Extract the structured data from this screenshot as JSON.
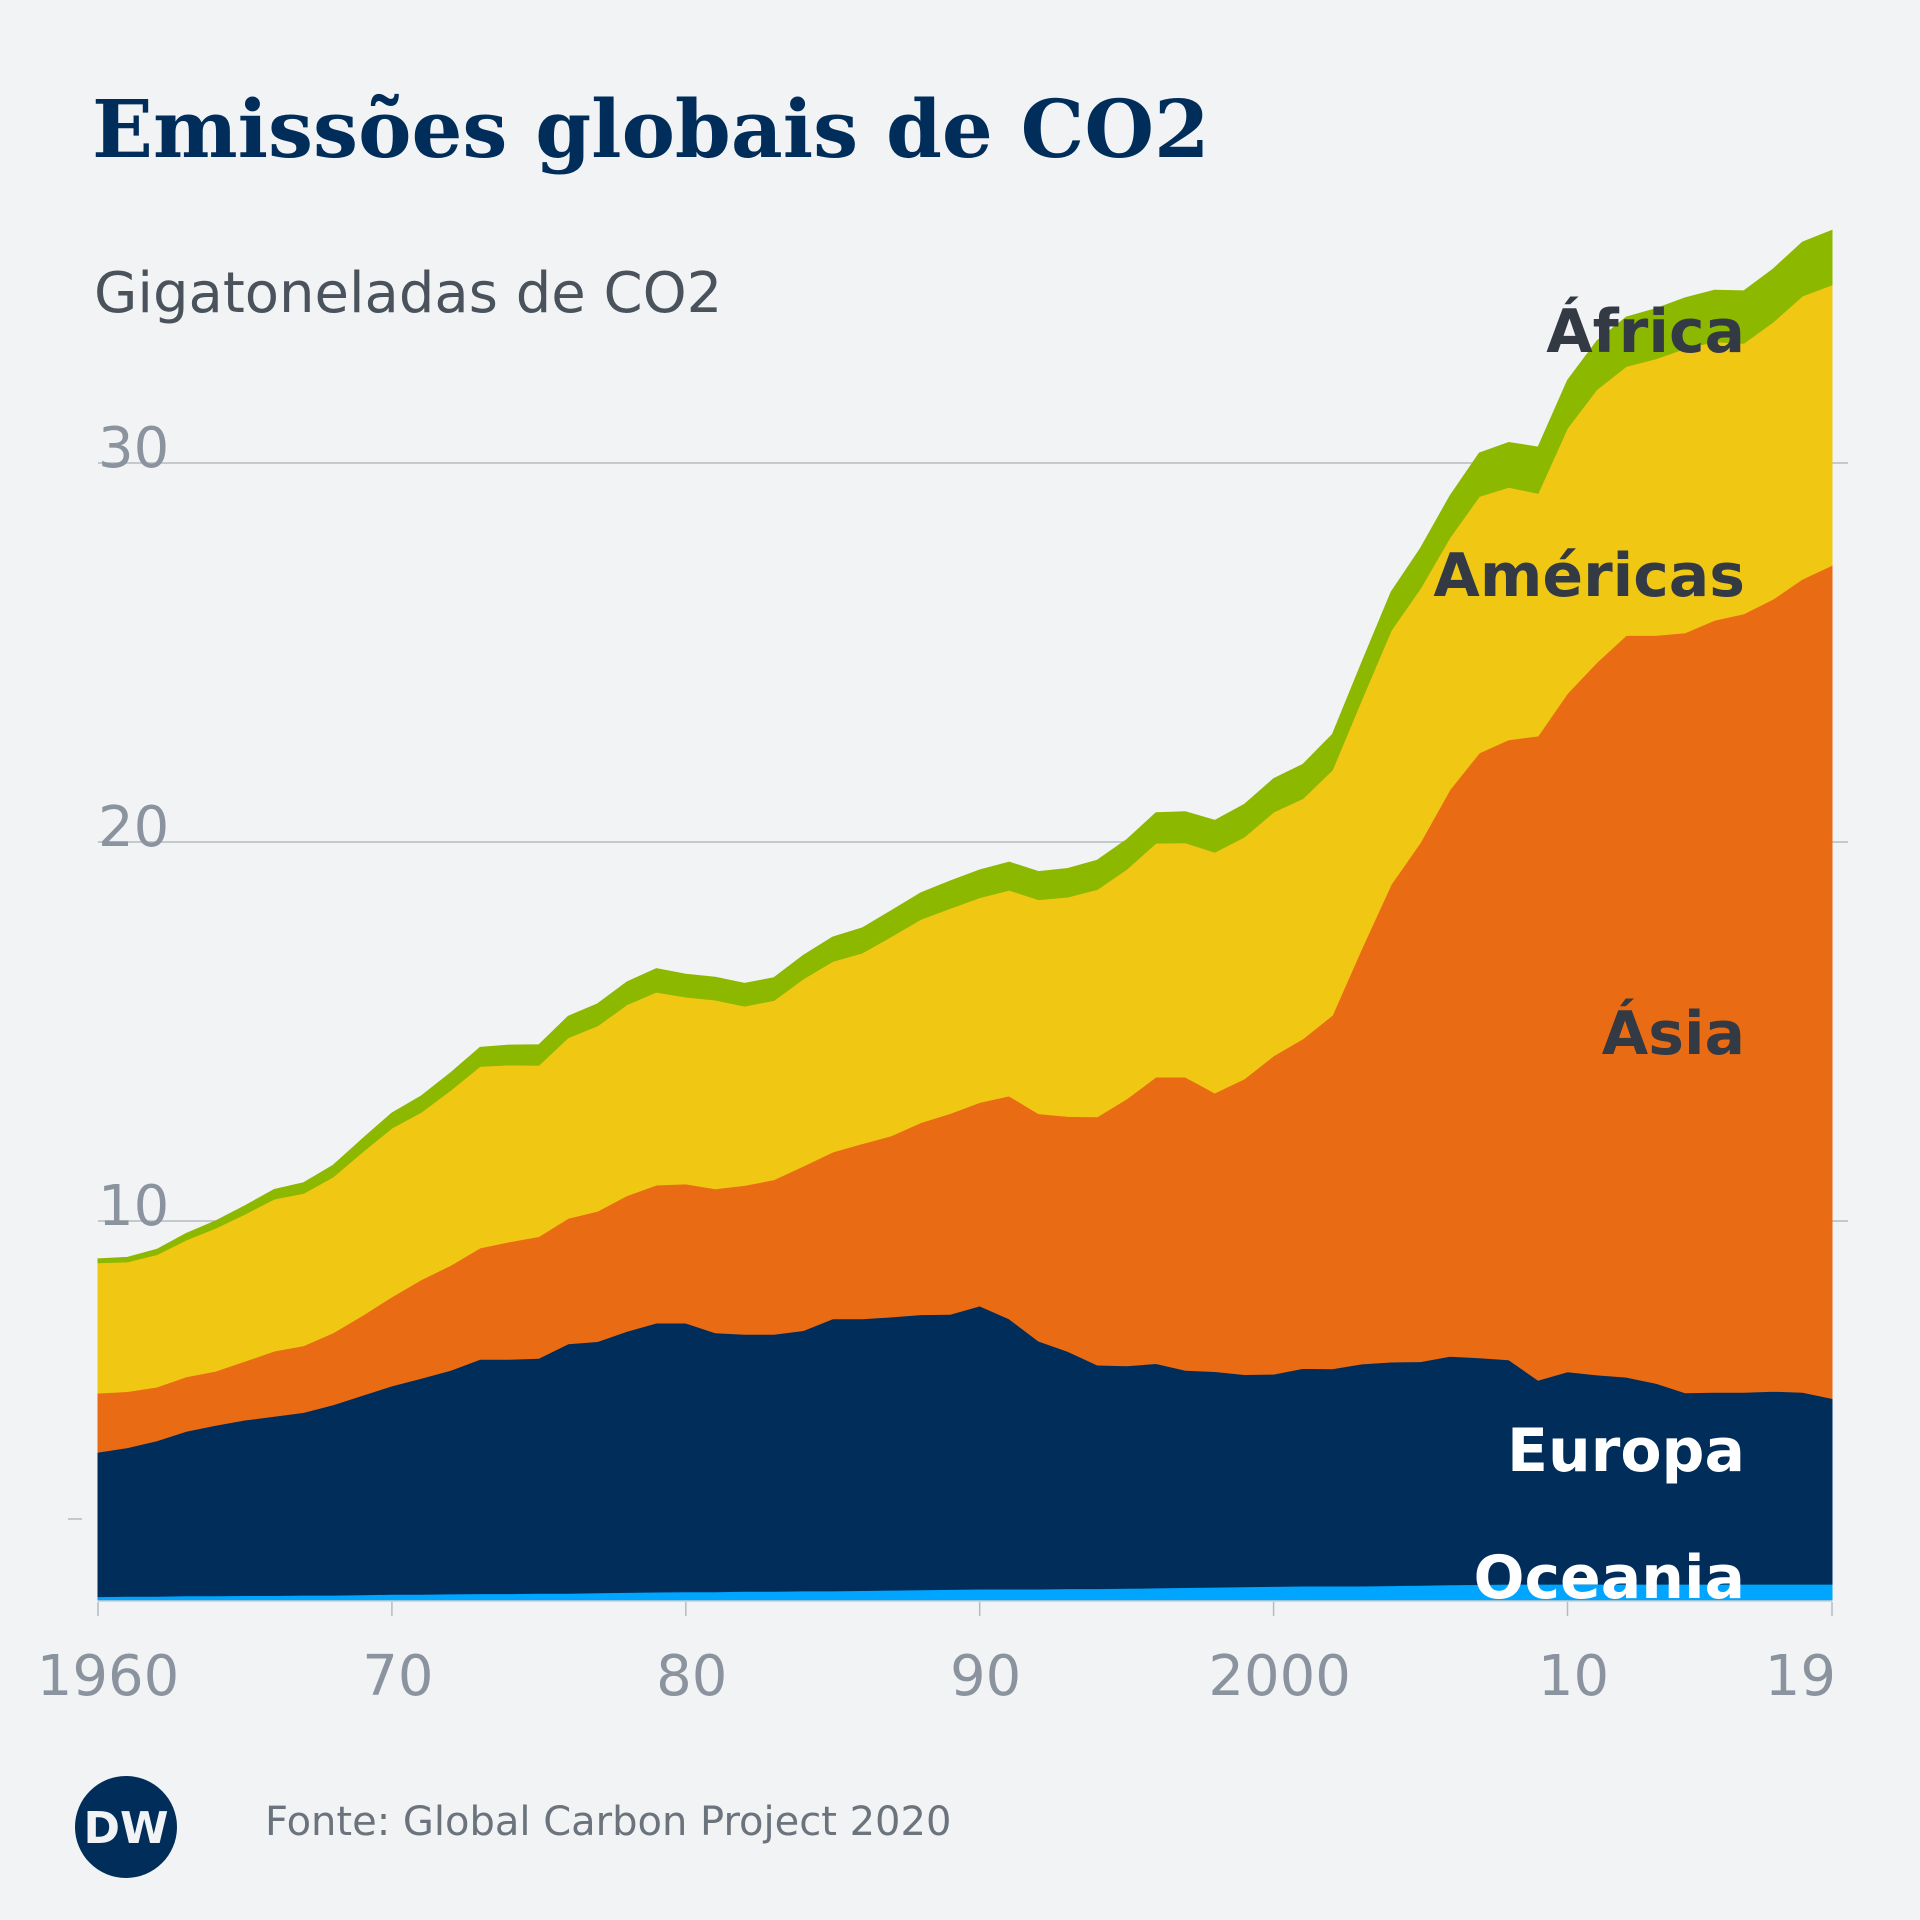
{
  "header": {
    "title": "Emissões globais de CO2",
    "subtitle": "Gigatoneladas de CO2"
  },
  "footer": {
    "source": "Fonte: Global Carbon Project 2020",
    "logo_text": "DW"
  },
  "colors": {
    "background": "#f1f3f5",
    "title": "#002d5a",
    "axis_text": "#8a939e",
    "label_dark": "#333a44",
    "label_light": "#ffffff",
    "gridline": "#b5bbc2"
  },
  "chart_data": {
    "type": "area",
    "stacked": true,
    "ylabel": "Gigatoneladas de CO2",
    "ylim": [
      0,
      35
    ],
    "xlim": [
      1960,
      2019
    ],
    "yticks": [
      10,
      20,
      30
    ],
    "ytick_labels": [
      "10",
      "20",
      "30"
    ],
    "xticks": [
      1960,
      1970,
      1980,
      1990,
      2000,
      2010,
      2019
    ],
    "xtick_labels": [
      "1960",
      "70",
      "80",
      "90",
      "2000",
      "10",
      "19"
    ],
    "grid": "horizontal",
    "x": [
      1960,
      1961,
      1962,
      1963,
      1964,
      1965,
      1966,
      1967,
      1968,
      1969,
      1970,
      1971,
      1972,
      1973,
      1974,
      1975,
      1976,
      1977,
      1978,
      1979,
      1980,
      1981,
      1982,
      1983,
      1984,
      1985,
      1986,
      1987,
      1988,
      1989,
      1990,
      1991,
      1992,
      1993,
      1994,
      1995,
      1996,
      1997,
      1998,
      1999,
      2000,
      2001,
      2002,
      2003,
      2004,
      2005,
      2006,
      2007,
      2008,
      2009,
      2010,
      2011,
      2012,
      2013,
      2014,
      2015,
      2016,
      2017,
      2018,
      2019
    ],
    "series": [
      {
        "name": "Oceania",
        "color": "#00a5ff",
        "label_color": "#ffffff",
        "values": [
          0.09,
          0.1,
          0.1,
          0.11,
          0.11,
          0.12,
          0.12,
          0.13,
          0.13,
          0.14,
          0.15,
          0.15,
          0.16,
          0.17,
          0.17,
          0.18,
          0.18,
          0.19,
          0.2,
          0.21,
          0.22,
          0.22,
          0.23,
          0.23,
          0.24,
          0.24,
          0.25,
          0.26,
          0.27,
          0.28,
          0.29,
          0.29,
          0.29,
          0.3,
          0.3,
          0.31,
          0.32,
          0.33,
          0.34,
          0.35,
          0.36,
          0.37,
          0.37,
          0.37,
          0.38,
          0.39,
          0.4,
          0.41,
          0.42,
          0.42,
          0.42,
          0.42,
          0.42,
          0.42,
          0.42,
          0.42,
          0.42,
          0.42,
          0.42,
          0.42
        ]
      },
      {
        "name": "Europa",
        "color": "#002d5a",
        "label_color": "#ffffff",
        "values": [
          3.81,
          3.92,
          4.1,
          4.34,
          4.5,
          4.63,
          4.73,
          4.82,
          5.02,
          5.26,
          5.5,
          5.7,
          5.9,
          6.18,
          6.18,
          6.2,
          6.58,
          6.63,
          6.89,
          7.1,
          7.09,
          6.83,
          6.78,
          6.78,
          6.87,
          7.18,
          7.17,
          7.21,
          7.26,
          7.26,
          7.47,
          7.13,
          6.54,
          6.26,
          5.9,
          5.87,
          5.92,
          5.73,
          5.69,
          5.6,
          5.6,
          5.74,
          5.73,
          5.86,
          5.9,
          5.9,
          6.03,
          5.98,
          5.92,
          5.38,
          5.6,
          5.52,
          5.46,
          5.3,
          5.05,
          5.06,
          5.06,
          5.09,
          5.06,
          4.9
        ]
      },
      {
        "name": "Ásia",
        "color": "#e96c14",
        "label_color": "#333a44",
        "values": [
          1.56,
          1.48,
          1.42,
          1.44,
          1.43,
          1.55,
          1.72,
          1.76,
          1.9,
          2.11,
          2.35,
          2.6,
          2.77,
          2.94,
          3.1,
          3.21,
          3.31,
          3.44,
          3.58,
          3.64,
          3.67,
          3.8,
          3.93,
          4.08,
          4.34,
          4.4,
          4.62,
          4.78,
          5.07,
          5.3,
          5.37,
          5.88,
          6.0,
          6.2,
          6.55,
          7.04,
          7.56,
          7.74,
          7.35,
          7.8,
          8.4,
          8.7,
          9.33,
          10.96,
          12.6,
          13.7,
          14.95,
          15.96,
          16.36,
          17.0,
          17.9,
          18.8,
          19.57,
          19.73,
          20.05,
          20.37,
          20.54,
          20.9,
          21.46,
          21.98
        ]
      },
      {
        "name": "Américas",
        "color": "#f0c814",
        "label_color": "#333a44",
        "values": [
          3.44,
          3.42,
          3.49,
          3.61,
          3.77,
          3.88,
          4.01,
          4.02,
          4.11,
          4.31,
          4.45,
          4.42,
          4.62,
          4.79,
          4.67,
          4.52,
          4.77,
          4.89,
          5.04,
          5.09,
          4.93,
          4.98,
          4.73,
          4.73,
          4.94,
          5.03,
          5.03,
          5.26,
          5.36,
          5.41,
          5.4,
          5.43,
          5.65,
          5.79,
          6.0,
          6.06,
          6.17,
          6.18,
          6.35,
          6.38,
          6.43,
          6.34,
          6.47,
          6.57,
          6.7,
          6.7,
          6.65,
          6.77,
          6.66,
          6.4,
          7.0,
          7.2,
          7.1,
          7.3,
          7.5,
          7.35,
          7.14,
          7.31,
          7.47,
          7.4
        ]
      },
      {
        "name": "África",
        "color": "#8cb800",
        "label_color": "#333a44",
        "values": [
          0.1,
          0.12,
          0.14,
          0.17,
          0.19,
          0.22,
          0.25,
          0.28,
          0.31,
          0.35,
          0.4,
          0.43,
          0.46,
          0.5,
          0.52,
          0.54,
          0.56,
          0.58,
          0.6,
          0.62,
          0.6,
          0.6,
          0.6,
          0.6,
          0.62,
          0.64,
          0.66,
          0.68,
          0.7,
          0.72,
          0.73,
          0.74,
          0.74,
          0.75,
          0.77,
          0.78,
          0.8,
          0.82,
          0.84,
          0.86,
          0.88,
          0.9,
          0.94,
          0.98,
          1.02,
          1.06,
          1.1,
          1.14,
          1.18,
          1.22,
          1.26,
          1.28,
          1.3,
          1.32,
          1.34,
          1.36,
          1.38,
          1.4,
          1.42,
          1.44
        ]
      }
    ]
  }
}
